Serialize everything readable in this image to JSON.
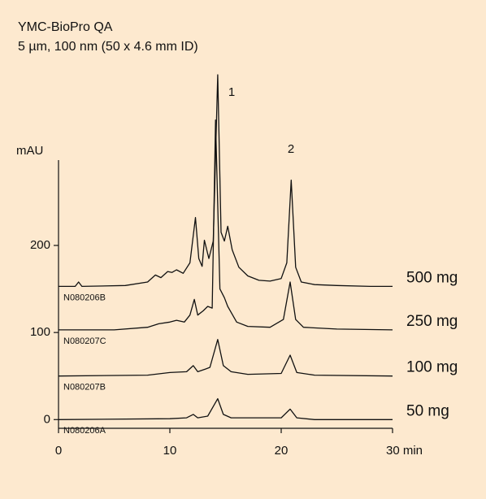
{
  "chart_data": {
    "type": "line",
    "title": "YMC-BioPro QA",
    "subtitle": "5 µm, 100 nm (50 x 4.6 mm ID)",
    "y_label": "mAU",
    "peak_labels": [
      "1",
      "2"
    ],
    "xlim": [
      0,
      30
    ],
    "xticks": [
      0,
      10,
      20,
      {
        "value": 30,
        "label": "30 min"
      }
    ],
    "ylim": [
      -10,
      298
    ],
    "yticks": [
      0,
      100,
      200
    ],
    "color": "#111111",
    "series": [
      {
        "name": "500 mg",
        "sample": "N080206B",
        "x": [
          0,
          1.5,
          1.8,
          2.1,
          6,
          8,
          8.7,
          9.2,
          9.8,
          10.2,
          10.6,
          11.2,
          11.8,
          12.3,
          12.6,
          12.9,
          13.1,
          13.5,
          13.9,
          14.3,
          14.6,
          14.9,
          15.2,
          15.6,
          16.2,
          17,
          18,
          19,
          20,
          20.5,
          20.9,
          21.3,
          21.8,
          23,
          25,
          28,
          30
        ],
        "values": [
          153,
          153,
          158,
          153,
          154,
          158,
          166,
          163,
          170,
          169,
          172,
          168,
          180,
          232,
          185,
          176,
          206,
          185,
          205,
          396,
          215,
          205,
          222,
          195,
          175,
          165,
          160,
          159,
          162,
          180,
          275,
          175,
          158,
          155,
          154,
          153,
          153
        ]
      },
      {
        "name": "250 mg",
        "sample": "N080207C",
        "x": [
          0,
          5,
          8,
          9,
          10,
          10.6,
          11.3,
          11.8,
          12.2,
          12.5,
          13,
          13.4,
          13.8,
          14.1,
          14.5,
          14.9,
          15.2,
          16,
          17,
          19,
          20.2,
          20.8,
          21.3,
          22,
          25,
          30
        ],
        "values": [
          103,
          103,
          106,
          110,
          112,
          114,
          112,
          120,
          138,
          120,
          125,
          130,
          128,
          344,
          150,
          140,
          130,
          112,
          107,
          106,
          115,
          158,
          115,
          106,
          104,
          103
        ]
      },
      {
        "name": "100 mg",
        "sample": "N080207B",
        "x": [
          0,
          8,
          10,
          11.5,
          12.1,
          12.5,
          13.2,
          13.6,
          14.3,
          14.8,
          15.5,
          17,
          20,
          20.8,
          21.4,
          23,
          30
        ],
        "values": [
          50,
          51,
          54,
          55,
          62,
          55,
          58,
          60,
          92,
          62,
          55,
          52,
          53,
          74,
          54,
          51,
          50
        ]
      },
      {
        "name": "50 mg",
        "sample": "N080206A",
        "x": [
          0,
          10,
          11.5,
          12.1,
          12.5,
          13.4,
          14.3,
          14.8,
          15.5,
          20,
          20.8,
          21.4,
          23,
          30
        ],
        "values": [
          0,
          1,
          2,
          6,
          2,
          4,
          24,
          6,
          2,
          2,
          12,
          2,
          0,
          0
        ]
      }
    ]
  }
}
